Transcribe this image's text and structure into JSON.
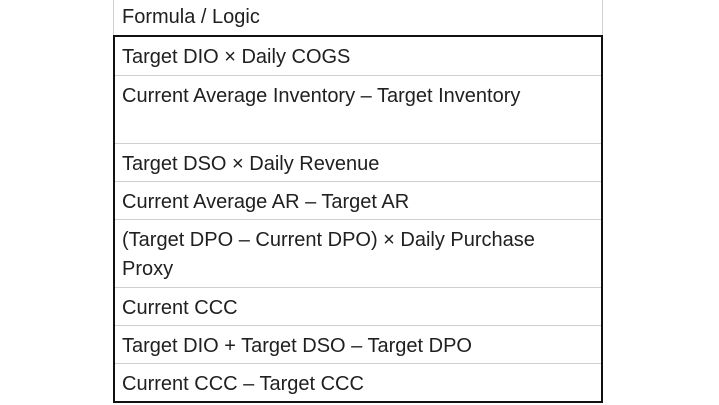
{
  "table": {
    "header": "Formula / Logic",
    "rows": [
      "Target DIO × Daily COGS",
      "Current Average Inventory – Target Inventory",
      "Target DSO × Daily Revenue",
      "Current Average AR – Target AR",
      "(Target DPO – Current DPO) × Daily Purchase Proxy",
      "Current CCC",
      "Target DIO + Target DSO – Target DPO",
      "Current CCC – Target CCC"
    ]
  }
}
